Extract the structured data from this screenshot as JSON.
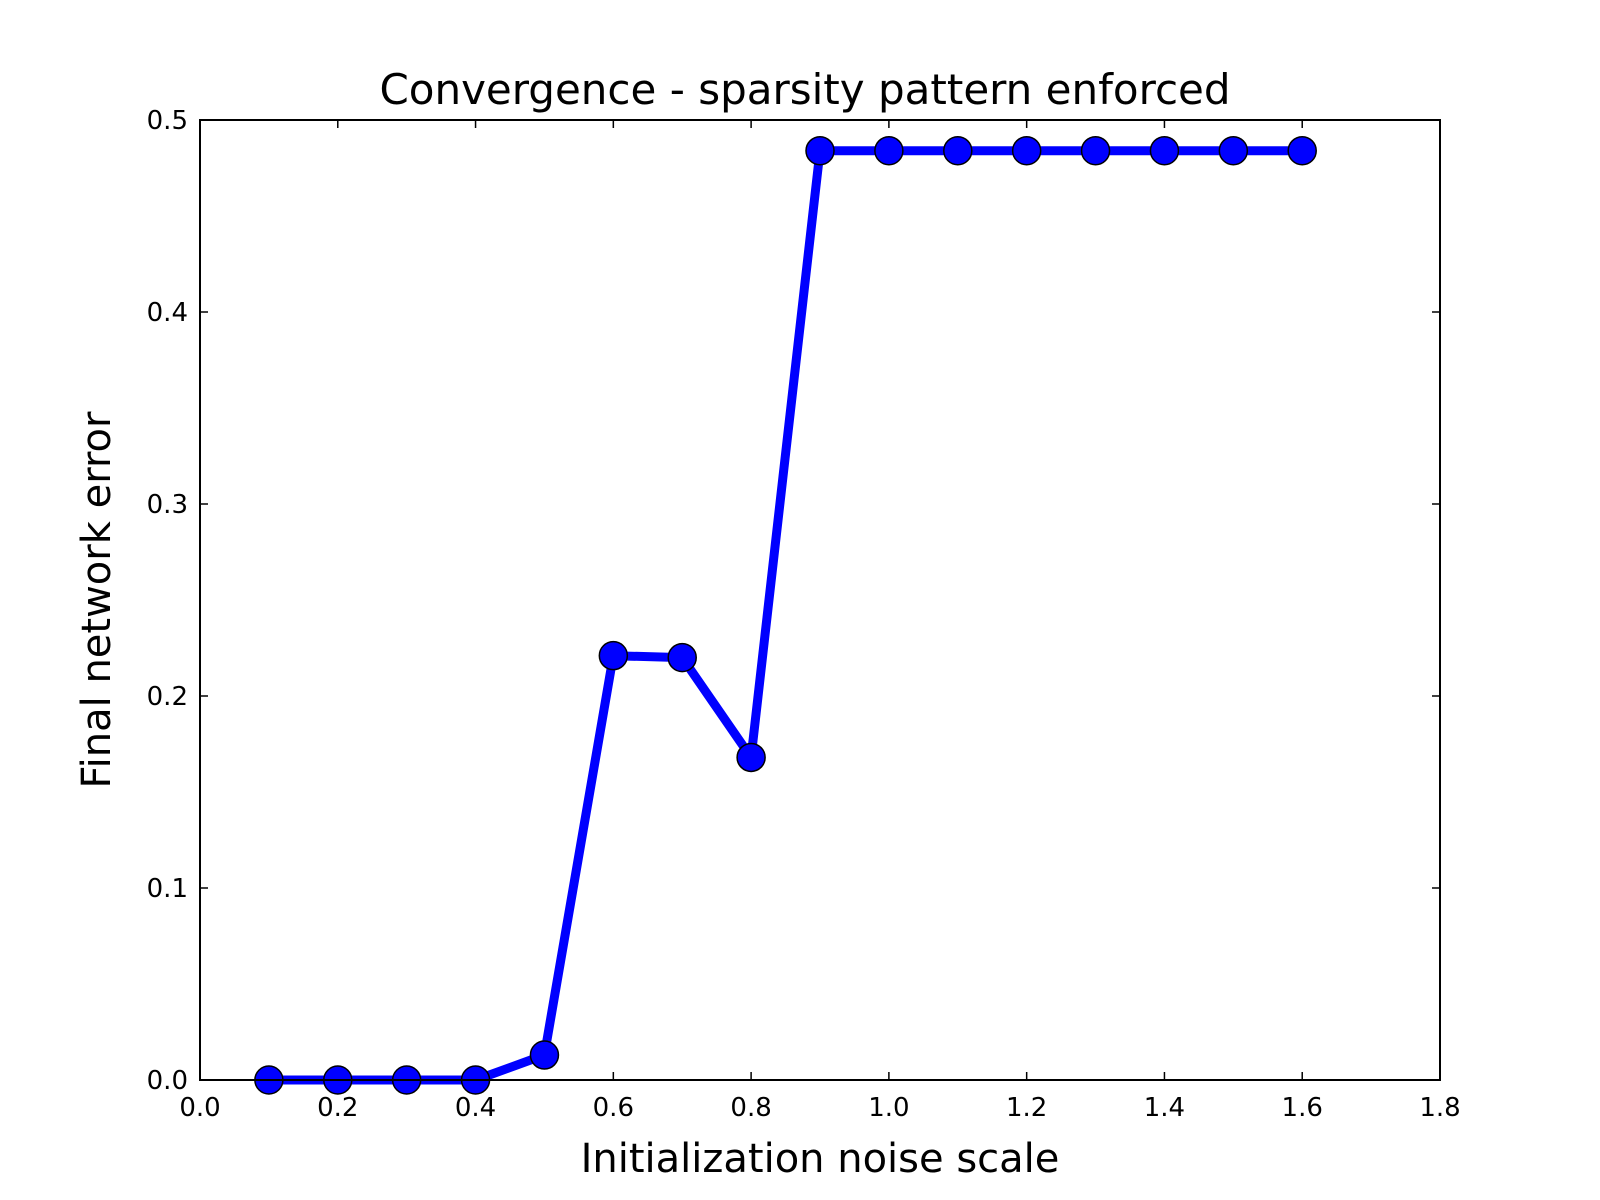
{
  "chart_data": {
    "type": "line",
    "title": "Convergence - sparsity pattern enforced",
    "xlabel": "Initialization noise scale",
    "ylabel": "Final network error",
    "xlim": [
      0.0,
      1.8
    ],
    "ylim": [
      0.0,
      0.5
    ],
    "xticks": [
      "0.0",
      "0.2",
      "0.4",
      "0.6",
      "0.8",
      "1.0",
      "1.2",
      "1.4",
      "1.6",
      "1.8"
    ],
    "yticks": [
      "0.0",
      "0.1",
      "0.2",
      "0.3",
      "0.4",
      "0.5"
    ],
    "grid": false,
    "series": [
      {
        "color": "#0000ff",
        "marker": "circle",
        "x": [
          0.1,
          0.2,
          0.3,
          0.4,
          0.5,
          0.6,
          0.7,
          0.8,
          0.9,
          1.0,
          1.1,
          1.2,
          1.3,
          1.4,
          1.5,
          1.6
        ],
        "y": [
          0.0,
          0.0,
          0.0,
          0.0,
          0.013,
          0.221,
          0.22,
          0.168,
          0.484,
          0.484,
          0.484,
          0.484,
          0.484,
          0.484,
          0.484,
          0.484
        ]
      }
    ]
  }
}
